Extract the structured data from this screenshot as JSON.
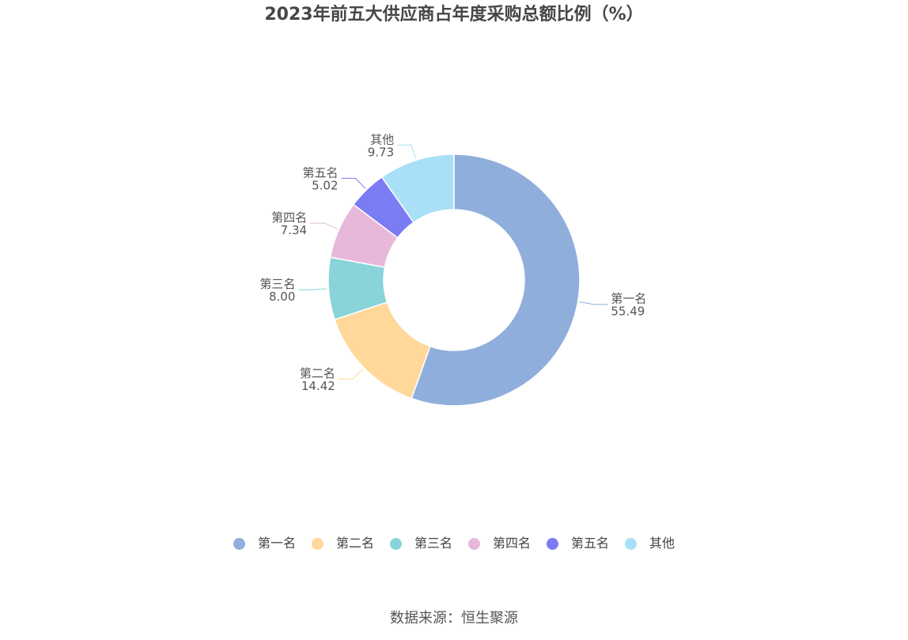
{
  "title": "2023年前五大供应商占年度采购总额比例（%）",
  "source": "数据来源：恒生聚源",
  "chart_data": {
    "type": "pie",
    "donut": true,
    "title": "2023年前五大供应商占年度采购总额比例（%）",
    "categories": [
      "第一名",
      "第二名",
      "第三名",
      "第四名",
      "第五名",
      "其他"
    ],
    "values": [
      55.49,
      14.42,
      8.0,
      7.34,
      5.02,
      9.73
    ],
    "value_labels": [
      "55.49",
      "14.42",
      "8.00",
      "7.34",
      "5.02",
      "9.73"
    ],
    "colors": [
      "#8FAEDB",
      "#FFD89A",
      "#88D4D8",
      "#E8B8DA",
      "#7B7CF3",
      "#A9DFF7"
    ],
    "legend_position": "bottom"
  }
}
